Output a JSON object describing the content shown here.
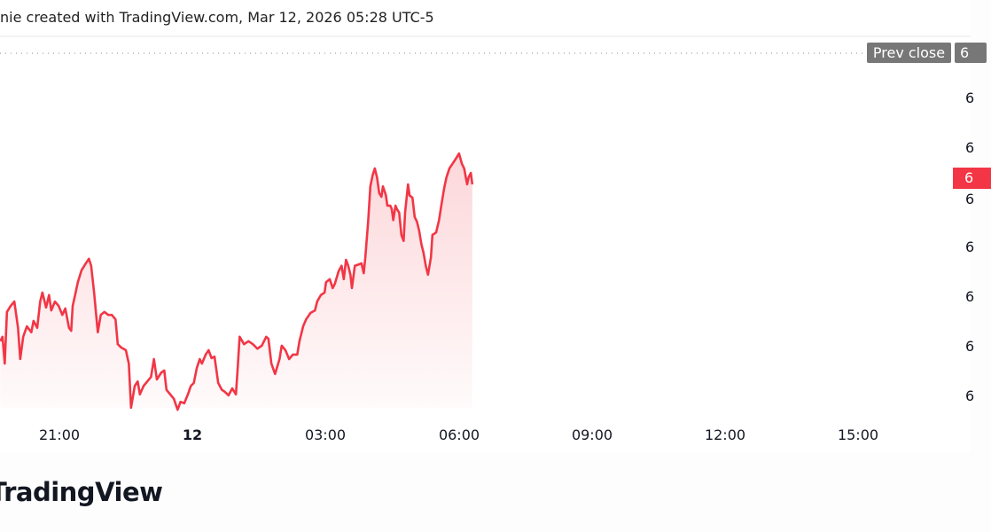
{
  "header": {
    "text": "nie created with TradingView.com, Mar 12, 2026 05:28 UTC-5"
  },
  "footer": {
    "logo_text": "TradingView"
  },
  "colors": {
    "line": "#f23645",
    "prev_close_label": "#777777",
    "last_price_label": "#f23645"
  },
  "chart_data": {
    "type": "area",
    "title": "",
    "xlabel": "",
    "ylabel": "",
    "x_ticks": [
      "21:00",
      "12",
      "03:00",
      "06:00",
      "09:00",
      "12:00",
      "15:00"
    ],
    "y_ticks": [
      "6",
      "6",
      "6",
      "6",
      "6",
      "6",
      "6"
    ],
    "y_ticks_note_levels": [
      6,
      5,
      4,
      3,
      2,
      1,
      0
    ],
    "ylim": [
      -0.5,
      7.5
    ],
    "grid": false,
    "prev_close": {
      "label": "Prev close",
      "value_label": "6",
      "level": 6.91
    },
    "last_price": {
      "label": "6",
      "level": 4.23
    },
    "series": [
      {
        "x": [
          "19:40",
          "19:43",
          "19:46",
          "19:49",
          "19:54",
          "19:59",
          "20:04",
          "20:07",
          "20:11",
          "20:16",
          "20:22",
          "20:25",
          "20:30",
          "20:34",
          "20:37",
          "20:42",
          "20:46",
          "20:49",
          "20:54",
          "20:59",
          "21:04",
          "21:08",
          "21:13",
          "21:16",
          "21:18",
          "21:22",
          "21:25",
          "21:30",
          "21:35",
          "21:40",
          "21:43",
          "21:47",
          "21:52",
          "21:56",
          "22:01",
          "22:06",
          "22:11",
          "22:16",
          "22:19",
          "22:24",
          "22:30",
          "22:34",
          "22:37",
          "22:42",
          "22:46",
          "22:49",
          "22:54",
          "22:59",
          "23:04",
          "23:08",
          "23:12",
          "23:18",
          "23:22",
          "23:25",
          "23:30",
          "23:35",
          "23:40",
          "23:44",
          "23:49",
          "23:54",
          "23:58",
          "00:02",
          "00:06",
          "00:10",
          "00:13",
          "00:18",
          "00:22",
          "00:26",
          "00:30",
          "00:35",
          "00:40",
          "00:44",
          "00:49",
          "00:54",
          "00:59",
          "01:01",
          "01:04",
          "01:10",
          "01:16",
          "01:22",
          "01:28",
          "01:34",
          "01:40",
          "01:43",
          "01:47",
          "01:52",
          "01:58",
          "02:01",
          "02:06",
          "02:11",
          "02:16",
          "02:22",
          "02:25",
          "02:30",
          "02:34",
          "02:40",
          "02:46",
          "02:49",
          "02:54",
          "02:59",
          "03:01",
          "03:06",
          "03:10",
          "03:13",
          "03:18",
          "03:22",
          "03:25",
          "03:28",
          "03:31",
          "03:34",
          "03:36",
          "03:40",
          "03:46",
          "03:49",
          "03:52",
          "03:54",
          "03:58",
          "04:01",
          "04:04",
          "04:07",
          "04:10",
          "04:13",
          "04:16",
          "04:18",
          "04:22",
          "04:24",
          "04:28",
          "04:30",
          "04:32",
          "04:35",
          "04:37",
          "04:40",
          "04:43",
          "04:46",
          "04:48",
          "04:52",
          "04:54",
          "04:58",
          "05:01",
          "05:04",
          "05:07",
          "05:10",
          "05:13",
          "05:16",
          "05:19",
          "05:23",
          "05:25",
          "05:30",
          "05:34",
          "05:37",
          "05:41",
          "05:44",
          "05:48",
          "05:52",
          "05:56",
          "06:01",
          "06:05",
          "06:08",
          "06:12",
          "06:14",
          "06:17",
          "06:19"
        ],
        "values": [
          1.11,
          1.2,
          0.66,
          1.7,
          1.82,
          1.91,
          1.38,
          0.75,
          1.2,
          1.41,
          1.29,
          1.52,
          1.38,
          1.91,
          2.09,
          1.79,
          2.04,
          1.73,
          1.91,
          1.82,
          1.64,
          1.77,
          1.38,
          1.32,
          1.82,
          2.09,
          2.3,
          2.54,
          2.66,
          2.77,
          2.63,
          2.09,
          1.29,
          1.64,
          1.7,
          1.64,
          1.64,
          1.55,
          1.05,
          0.98,
          0.93,
          0.66,
          -0.23,
          0.21,
          0.3,
          0.04,
          0.21,
          0.3,
          0.39,
          0.75,
          0.34,
          0.48,
          0.52,
          0.13,
          0.04,
          -0.05,
          -0.27,
          -0.11,
          -0.14,
          0.04,
          0.21,
          0.27,
          0.57,
          0.75,
          0.66,
          0.84,
          0.93,
          0.77,
          0.8,
          0.27,
          0.13,
          0.09,
          0.02,
          0.16,
          0.04,
          0.48,
          1.2,
          1.05,
          1.11,
          1.05,
          0.96,
          1.02,
          1.2,
          1.16,
          0.66,
          0.45,
          0.75,
          1.02,
          0.93,
          0.75,
          0.84,
          0.84,
          1.11,
          1.41,
          1.55,
          1.68,
          1.73,
          1.91,
          2.04,
          2.09,
          2.3,
          2.36,
          2.18,
          2.27,
          2.52,
          2.63,
          2.36,
          2.75,
          2.63,
          2.45,
          2.18,
          2.63,
          2.66,
          2.68,
          2.48,
          2.77,
          3.52,
          4.23,
          4.45,
          4.59,
          4.41,
          4.09,
          4.02,
          4.23,
          4.05,
          3.84,
          3.84,
          3.77,
          3.55,
          3.84,
          3.77,
          3.7,
          3.25,
          3.13,
          3.7,
          4.27,
          4.05,
          4.0,
          3.61,
          3.52,
          3.34,
          3.07,
          2.89,
          2.63,
          2.45,
          2.8,
          3.25,
          3.3,
          3.55,
          3.84,
          4.2,
          4.41,
          4.59,
          4.68,
          4.77,
          4.89,
          4.68,
          4.59,
          4.27,
          4.41,
          4.5,
          4.27
        ]
      }
    ]
  }
}
